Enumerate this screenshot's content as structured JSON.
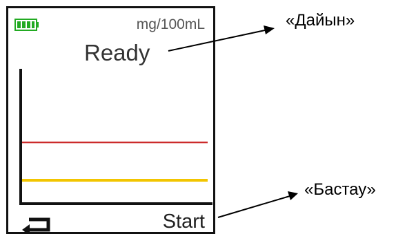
{
  "device": {
    "unit_label": "mg/100mL",
    "status_label": "Ready",
    "softkey_right_label": "Start",
    "softkey_left_icon": "back-arrow-icon",
    "battery_icon": "battery-full-icon"
  },
  "annotations": {
    "ready_callout": "«Дайын»",
    "start_callout": "«Бастау»"
  },
  "colors": {
    "battery": "#22aa22",
    "upper_threshold": "#cc2b2b",
    "lower_threshold": "#f2c500",
    "frame": "#111111"
  }
}
